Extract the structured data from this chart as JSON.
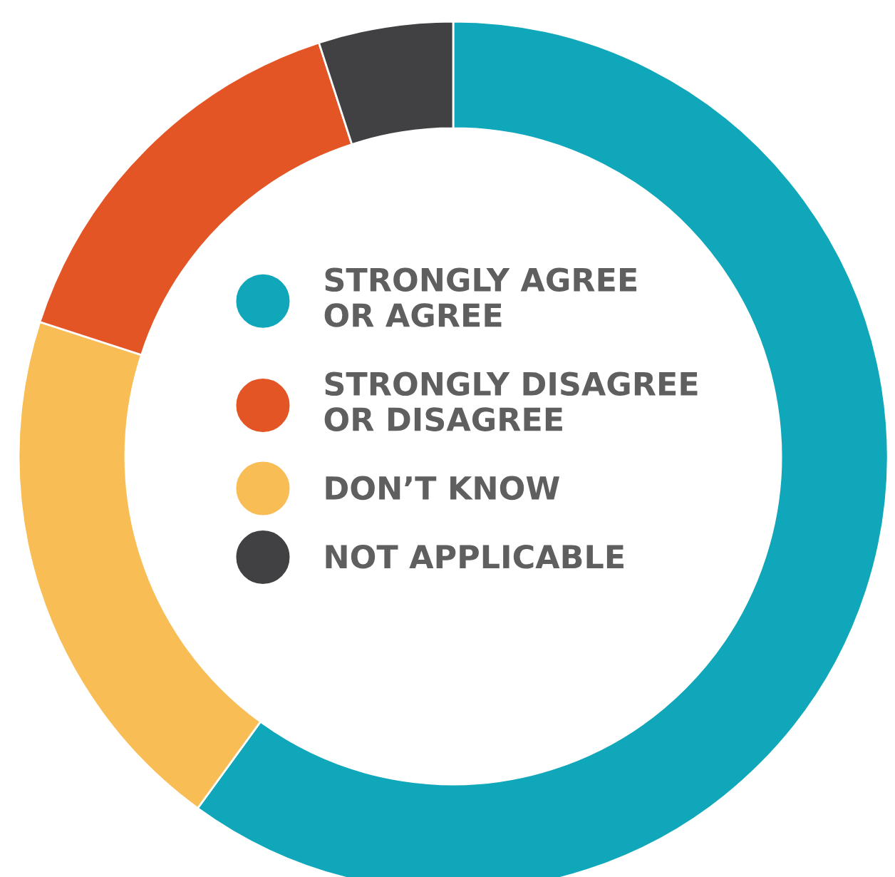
{
  "chart_data": {
    "type": "donut",
    "categories": [
      "STRONGLY AGREE\nOR AGREE",
      "STRONGLY DISAGREE\nOR DISAGREE",
      "DON’T KNOW",
      "NOT APPLICABLE"
    ],
    "values": [
      60,
      15,
      20,
      5
    ],
    "colors": [
      "#0fa7b9",
      "#e45525",
      "#f8bd54",
      "#414143"
    ],
    "legend": "center"
  }
}
